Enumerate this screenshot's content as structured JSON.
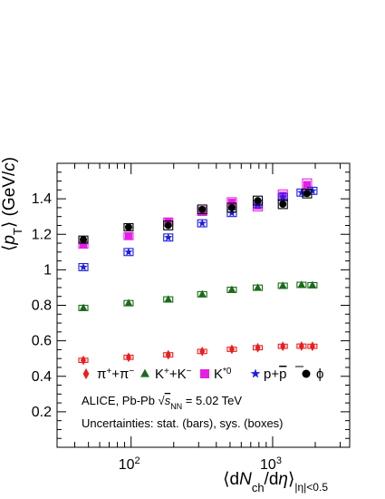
{
  "chart_data": {
    "type": "scatter",
    "x_scale": "log",
    "xlim": [
      30,
      3500
    ],
    "ylim": [
      0,
      1.6
    ],
    "x_tick_labels": [
      {
        "label": "10^2",
        "base": "10",
        "exp": "2",
        "value": 100
      },
      {
        "label": "10^3",
        "base": "10",
        "exp": "3",
        "value": 1000
      }
    ],
    "y_tick_labels": [
      "0.2",
      "0.4",
      "0.6",
      "0.8",
      "1",
      "1.2",
      "1.4"
    ],
    "y_tick_values": [
      0.2,
      0.4,
      0.6,
      0.8,
      1.0,
      1.2,
      1.4
    ],
    "xlabel": {
      "lead": "⟨d",
      "var1": "N",
      "sub1": "ch",
      "mid": "/d",
      "var2": "η",
      "close": "⟩",
      "sub2": "|η|<0.5"
    },
    "ylabel": {
      "lead": "⟨",
      "var": "p",
      "sub": "T",
      "mid": "⟩ (GeV/",
      "var2": "c",
      "close": ")"
    },
    "annotation_line1": {
      "pre": "ALICE, Pb-Pb ",
      "sqrt": "√",
      "s": "s",
      "sub": "NN",
      "post": " = 5.02 TeV"
    },
    "annotation_line2": "Uncertainties: stat. (bars), sys. (boxes)",
    "series": [
      {
        "name": "π⁺+π⁻",
        "legend_base": "π",
        "legend_sup1": "+",
        "legend_mid": "+π",
        "legend_sup2": "−",
        "marker": "diamond",
        "color": "#ee1c1c",
        "x": [
          46,
          96,
          183,
          318,
          515,
          785,
          1180,
          1600,
          1910
        ],
        "y": [
          0.49,
          0.507,
          0.521,
          0.54,
          0.552,
          0.561,
          0.569,
          0.57,
          0.569
        ],
        "sys": [
          0.012,
          0.012,
          0.012,
          0.012,
          0.012,
          0.012,
          0.012,
          0.012,
          0.012
        ]
      },
      {
        "name": "K⁺+K⁻",
        "legend_base": "K",
        "legend_sup1": "+",
        "legend_mid": "+K",
        "legend_sup2": "−",
        "marker": "triangle",
        "color": "#1a6b1a",
        "x": [
          46,
          96,
          183,
          318,
          515,
          785,
          1180,
          1600,
          1910
        ],
        "y": [
          0.785,
          0.812,
          0.833,
          0.862,
          0.887,
          0.899,
          0.91,
          0.915,
          0.913
        ],
        "sys": [
          0.015,
          0.015,
          0.015,
          0.015,
          0.015,
          0.015,
          0.015,
          0.015,
          0.015
        ]
      },
      {
        "name": "K*0",
        "legend_base": "K",
        "legend_sup1": "*0",
        "marker": "square",
        "color": "#e61ee6",
        "x": [
          46,
          96,
          183,
          318,
          515,
          785,
          1180,
          1750
        ],
        "y": [
          1.14,
          1.19,
          1.27,
          1.33,
          1.38,
          1.36,
          1.42,
          1.48
        ],
        "sys": [
          0.018,
          0.02,
          0.022,
          0.024,
          0.026,
          0.028,
          0.03,
          0.032
        ]
      },
      {
        "name": "p+p̄",
        "legend_base": "p+",
        "legend_bar": "p",
        "marker": "star",
        "color": "#1e1ee6",
        "x": [
          46,
          96,
          183,
          318,
          515,
          785,
          1180,
          1600,
          1910
        ],
        "y": [
          1.015,
          1.1,
          1.182,
          1.262,
          1.32,
          1.37,
          1.41,
          1.435,
          1.445
        ],
        "sys": [
          0.02,
          0.02,
          0.02,
          0.02,
          0.02,
          0.02,
          0.02,
          0.02,
          0.02
        ]
      },
      {
        "name": "ϕ",
        "legend_base": "ϕ",
        "marker": "circle",
        "color": "#000000",
        "x": [
          46,
          96,
          183,
          318,
          515,
          785,
          1180,
          1750
        ],
        "y": [
          1.17,
          1.24,
          1.25,
          1.34,
          1.35,
          1.39,
          1.37,
          1.43
        ],
        "sys": [
          0.02,
          0.02,
          0.025,
          0.025,
          0.025,
          0.025,
          0.025,
          0.025
        ]
      }
    ]
  }
}
